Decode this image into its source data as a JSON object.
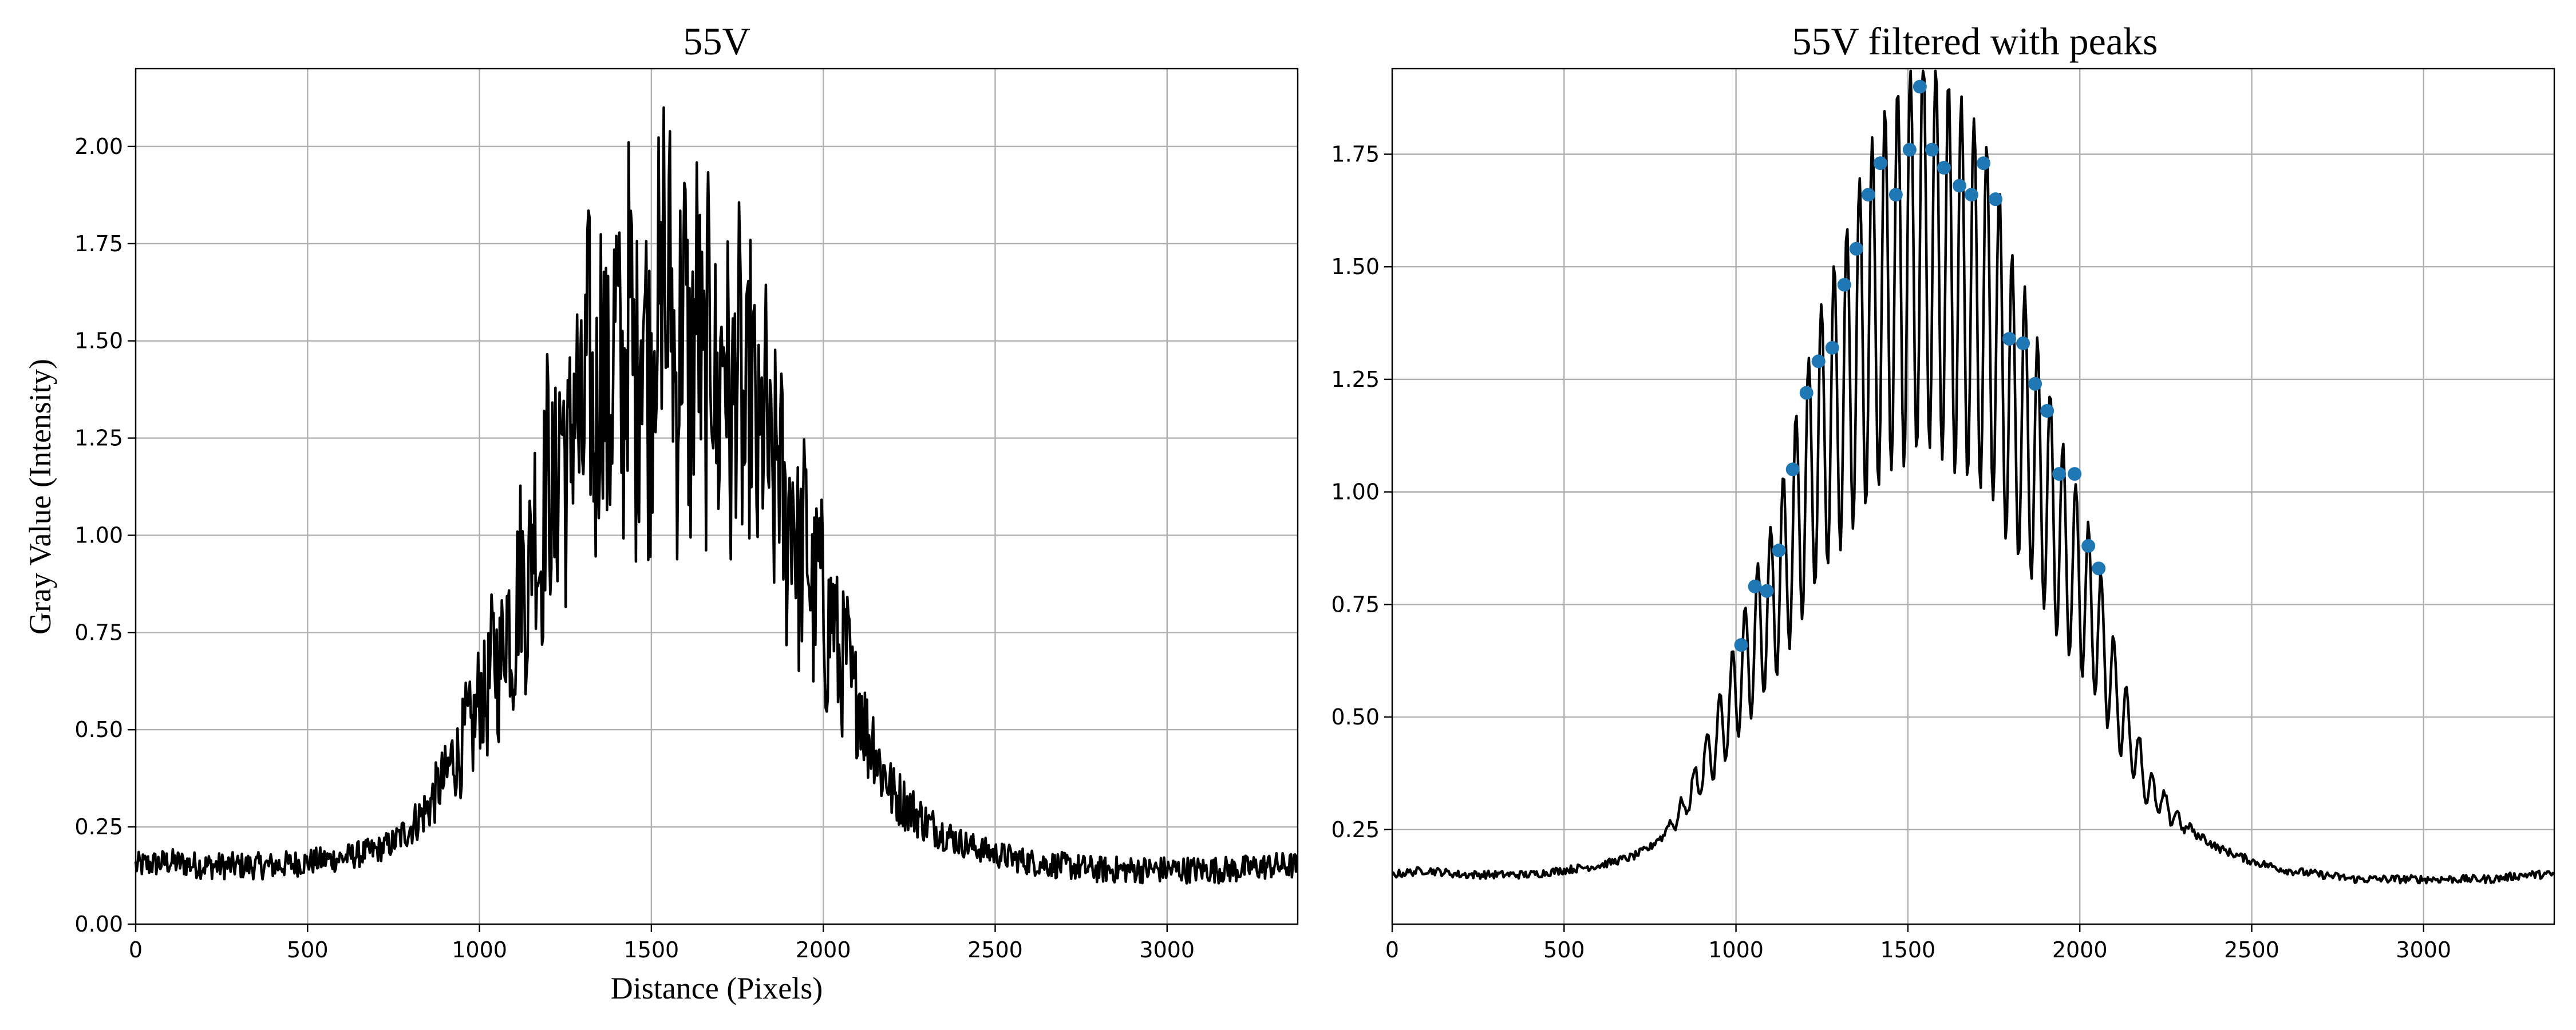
{
  "chart_data": [
    {
      "type": "line",
      "title": "55V",
      "xlabel": "Distance (Pixels)",
      "ylabel": "Gray Value (Intensity)",
      "xlim": [
        0,
        3380
      ],
      "ylim": [
        0,
        2.2
      ],
      "xticks": [
        0,
        500,
        1000,
        1500,
        2000,
        2500,
        3000
      ],
      "xtick_labels": [
        "0",
        "500",
        "1000",
        "1500",
        "2000",
        "2500",
        "3000"
      ],
      "yticks": [
        0,
        0.25,
        0.5,
        0.75,
        1.0,
        1.25,
        1.5,
        1.75,
        2.0
      ],
      "ytick_labels": [
        "0.00",
        "0.25",
        "0.50",
        "0.75",
        "1.00",
        "1.25",
        "1.50",
        "1.75",
        "2.00"
      ],
      "grid": true,
      "series": [
        {
          "color": "#000000",
          "x": [
            0,
            100,
            200,
            300,
            400,
            500,
            600,
            700,
            750,
            800,
            850,
            900,
            950,
            1000,
            1050,
            1100,
            1150,
            1200,
            1250,
            1300,
            1350,
            1400,
            1450,
            1500,
            1550,
            1600,
            1650,
            1700,
            1750,
            1800,
            1850,
            1900,
            1950,
            2000,
            2050,
            2100,
            2150,
            2200,
            2300,
            2400,
            2500,
            2600,
            2700,
            2800,
            2900,
            3000,
            3100,
            3200,
            3300,
            3380
          ],
          "y": [
            0.15,
            0.16,
            0.15,
            0.15,
            0.15,
            0.16,
            0.17,
            0.19,
            0.21,
            0.25,
            0.3,
            0.38,
            0.46,
            0.56,
            0.68,
            0.8,
            0.95,
            1.1,
            1.22,
            1.32,
            1.38,
            1.44,
            1.48,
            1.52,
            1.52,
            1.5,
            1.46,
            1.42,
            1.36,
            1.28,
            1.18,
            1.06,
            0.94,
            0.82,
            0.7,
            0.58,
            0.45,
            0.34,
            0.26,
            0.21,
            0.18,
            0.16,
            0.15,
            0.14,
            0.14,
            0.14,
            0.14,
            0.14,
            0.15,
            0.15
          ]
        }
      ],
      "max_point": {
        "x": 1535,
        "y": 2.1
      }
    },
    {
      "type": "line",
      "title": "55V filtered with peaks",
      "xlim": [
        0,
        3380
      ],
      "ylim": [
        0.04,
        1.94
      ],
      "xticks": [
        0,
        500,
        1000,
        1500,
        2000,
        2500,
        3000
      ],
      "xtick_labels": [
        "0",
        "500",
        "1000",
        "1500",
        "2000",
        "2500",
        "3000"
      ],
      "yticks": [
        0.25,
        0.5,
        0.75,
        1.0,
        1.25,
        1.5,
        1.75
      ],
      "ytick_labels": [
        "0.25",
        "0.50",
        "0.75",
        "1.00",
        "1.25",
        "1.50",
        "1.75"
      ],
      "grid": true,
      "series": [
        {
          "color": "#000000",
          "x": [
            0,
            100,
            200,
            300,
            400,
            500,
            600,
            700,
            750,
            800,
            850,
            900,
            950,
            1000,
            1050,
            1100,
            1150,
            1200,
            1250,
            1300,
            1350,
            1400,
            1450,
            1500,
            1550,
            1600,
            1650,
            1700,
            1750,
            1800,
            1850,
            1900,
            1950,
            2000,
            2050,
            2100,
            2150,
            2200,
            2300,
            2400,
            2500,
            2600,
            2700,
            2800,
            2900,
            3000,
            3100,
            3200,
            3300,
            3380
          ],
          "y": [
            0.15,
            0.16,
            0.15,
            0.15,
            0.15,
            0.16,
            0.17,
            0.19,
            0.21,
            0.25,
            0.3,
            0.38,
            0.46,
            0.56,
            0.66,
            0.74,
            0.86,
            1.0,
            1.12,
            1.2,
            1.3,
            1.4,
            1.46,
            1.5,
            1.56,
            1.5,
            1.46,
            1.42,
            1.36,
            1.2,
            1.12,
            1.0,
            0.88,
            0.8,
            0.7,
            0.56,
            0.45,
            0.34,
            0.26,
            0.21,
            0.18,
            0.16,
            0.15,
            0.14,
            0.14,
            0.14,
            0.14,
            0.14,
            0.15,
            0.15
          ]
        }
      ],
      "peaks": {
        "color": "#1f77b4",
        "x": [
          1015,
          1055,
          1090,
          1125,
          1165,
          1205,
          1240,
          1280,
          1315,
          1350,
          1385,
          1420,
          1465,
          1505,
          1535,
          1570,
          1605,
          1650,
          1685,
          1720,
          1755,
          1795,
          1835,
          1870,
          1905,
          1940,
          1985,
          2025,
          2055
        ],
        "y": [
          0.66,
          0.79,
          0.78,
          0.87,
          1.05,
          1.22,
          1.29,
          1.32,
          1.46,
          1.54,
          1.66,
          1.73,
          1.66,
          1.76,
          1.9,
          1.76,
          1.72,
          1.68,
          1.66,
          1.73,
          1.65,
          1.34,
          1.33,
          1.24,
          1.18,
          1.04,
          1.04,
          0.88,
          0.83
        ]
      }
    }
  ]
}
